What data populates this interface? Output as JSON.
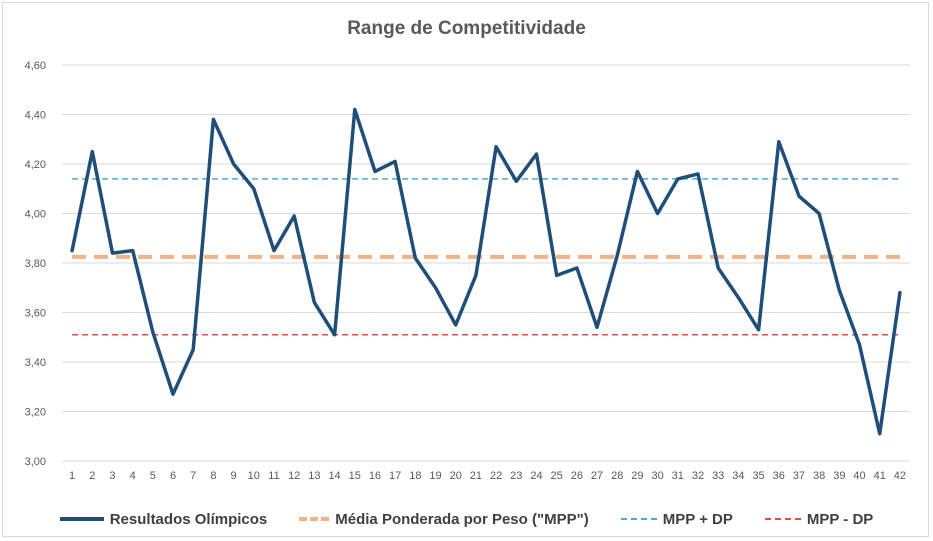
{
  "chart_data": {
    "type": "line",
    "title": "Range de Competitividade",
    "xlabel": "",
    "ylabel": "",
    "ylim": [
      3.0,
      4.6
    ],
    "y_ticks": [
      "3,00",
      "3,20",
      "3,40",
      "3,60",
      "3,80",
      "4,00",
      "4,20",
      "4,40",
      "4,60"
    ],
    "y_tick_values": [
      3.0,
      3.2,
      3.4,
      3.6,
      3.8,
      4.0,
      4.2,
      4.4,
      4.6
    ],
    "categories": [
      "1",
      "2",
      "3",
      "4",
      "5",
      "6",
      "7",
      "8",
      "9",
      "10",
      "11",
      "12",
      "13",
      "14",
      "15",
      "16",
      "17",
      "18",
      "19",
      "20",
      "21",
      "22",
      "23",
      "24",
      "25",
      "26",
      "27",
      "28",
      "29",
      "30",
      "31",
      "32",
      "33",
      "34",
      "35",
      "36",
      "37",
      "38",
      "39",
      "40",
      "41",
      "42"
    ],
    "grid": true,
    "legend_position": "bottom",
    "series": [
      {
        "name": "Resultados Olímpicos",
        "style": "solid",
        "color": "#1f4e79",
        "values": [
          3.85,
          4.25,
          3.84,
          3.85,
          3.52,
          3.27,
          3.45,
          4.38,
          4.2,
          4.1,
          3.85,
          3.99,
          3.64,
          3.51,
          4.42,
          4.17,
          4.21,
          3.82,
          3.7,
          3.55,
          3.75,
          4.27,
          4.13,
          4.24,
          3.75,
          3.78,
          3.54,
          3.83,
          4.17,
          4.0,
          4.14,
          4.16,
          3.78,
          3.66,
          3.53,
          4.29,
          4.07,
          4.0,
          3.69,
          3.47,
          3.11,
          3.68
        ]
      },
      {
        "name": "Média Ponderada por Peso (\"MPP\")",
        "style": "dashed-thick",
        "color": "#f4b183",
        "constant": 3.825
      },
      {
        "name": "MPP + DP",
        "style": "dashed",
        "color": "#4bacc6",
        "constant": 4.14
      },
      {
        "name": "MPP - DP",
        "style": "dashed",
        "color": "#e04b4b",
        "constant": 3.51
      }
    ]
  }
}
